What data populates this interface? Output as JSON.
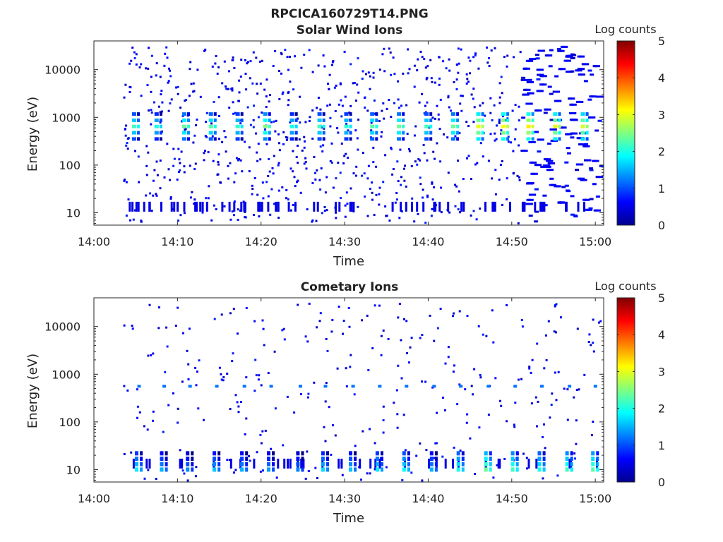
{
  "figure_title": "RPCICA160729T14.PNG",
  "chart_data": [
    {
      "type": "heatmap",
      "title": "Solar Wind Ions",
      "xlabel": "Time",
      "ylabel": "Energy (eV)",
      "x_range": [
        "14:00",
        "15:01"
      ],
      "x_ticks": [
        "14:00",
        "14:10",
        "14:20",
        "14:30",
        "14:40",
        "14:50",
        "15:00"
      ],
      "y_scale": "log",
      "y_range": [
        5.5,
        40000
      ],
      "y_ticks": [
        "10",
        "100",
        "1000",
        "10000"
      ],
      "colorbar": {
        "label": "Log counts",
        "range": [
          0,
          5
        ],
        "ticks": [
          "0",
          "1",
          "2",
          "3",
          "4",
          "5"
        ],
        "colormap": "jet"
      },
      "data_start": "14:03.5",
      "data_end": "15:01",
      "sweep_peak_times": [
        "14:04.8",
        "14:07.5",
        "14:10.8",
        "14:14.0",
        "14:17.2",
        "14:20.5",
        "14:23.7",
        "14:27.0",
        "14:30.2",
        "14:33.3",
        "14:36.5",
        "14:39.8",
        "14:43.0",
        "14:46.0",
        "14:49.0",
        "14:52.0",
        "14:55.2",
        "14:58.5"
      ],
      "peak_energy_eV": 700,
      "peak_log_counts": [
        2.2,
        2.0,
        2.4,
        2.3,
        2.1,
        2.5,
        2.0,
        2.2,
        2.1,
        2.3,
        2.4,
        2.2,
        2.4,
        3.0,
        3.1,
        3.2,
        3.0,
        2.9
      ],
      "grid": false
    },
    {
      "type": "heatmap",
      "title": "Cometary Ions",
      "xlabel": "Time",
      "ylabel": "Energy (eV)",
      "x_range": [
        "14:00",
        "15:01"
      ],
      "x_ticks": [
        "14:00",
        "14:10",
        "14:20",
        "14:30",
        "14:40",
        "14:50",
        "15:00"
      ],
      "y_scale": "log",
      "y_range": [
        5.5,
        40000
      ],
      "y_ticks": [
        "10",
        "100",
        "1000",
        "10000"
      ],
      "colorbar": {
        "label": "Log counts",
        "range": [
          0,
          5
        ],
        "ticks": [
          "0",
          "1",
          "2",
          "3",
          "4",
          "5"
        ],
        "colormap": "jet"
      },
      "data_start": "14:03.5",
      "data_end": "15:01",
      "sweep_peak_times": [
        "14:05.2",
        "14:08.2",
        "14:11.3",
        "14:14.5",
        "14:17.8",
        "14:21.0",
        "14:24.5",
        "14:27.5",
        "14:30.8",
        "14:34.0",
        "14:37.2",
        "14:40.5",
        "14:43.7",
        "14:47.0",
        "14:50.2",
        "14:53.4",
        "14:56.7",
        "14:59.8"
      ],
      "low_energy_eV": 10,
      "low_energy_log_counts": [
        1.8,
        1.5,
        1.3,
        1.6,
        1.5,
        1.4,
        1.3,
        1.7,
        1.6,
        1.8,
        1.9,
        1.5,
        2.0,
        2.4,
        2.2,
        2.0,
        2.2,
        2.3
      ],
      "secondary_band_eV": 600,
      "secondary_band_log_counts": 1.2,
      "grid": false
    }
  ]
}
